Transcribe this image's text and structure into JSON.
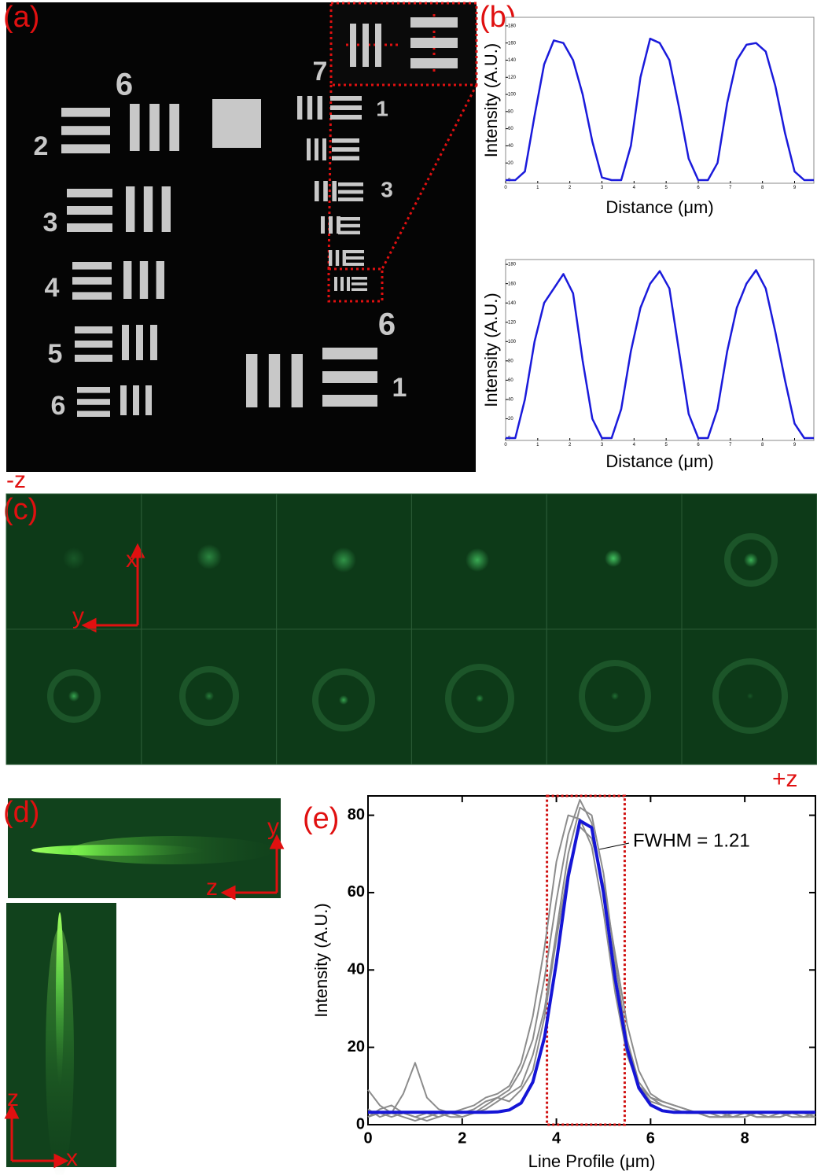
{
  "panel_labels": [
    "(a)",
    "(b)",
    "(c)",
    "(d)",
    "(e)"
  ],
  "z_range_labels": [
    "-z",
    "+z"
  ],
  "target_labels": [
    "6",
    "2",
    "3",
    "4",
    "5",
    "6",
    "7",
    "1",
    "3",
    "6",
    "1"
  ],
  "c_axes": [
    "x",
    "y"
  ],
  "d_top_axes": [
    "y",
    "z"
  ],
  "d_bottom_axes": [
    "z",
    "x"
  ],
  "chart_data": [
    {
      "type": "line",
      "x_label": "Distance (μm)",
      "y_label": "Intensity (A.U.)",
      "x": [
        0,
        0.3,
        0.6,
        0.9,
        1.2,
        1.5,
        1.8,
        2.1,
        2.4,
        2.7,
        3.0,
        3.3,
        3.6,
        3.9,
        4.2,
        4.5,
        4.8,
        5.1,
        5.4,
        5.7,
        6.0,
        6.3,
        6.6,
        6.9,
        7.2,
        7.5,
        7.8,
        8.1,
        8.4,
        8.7,
        9.0,
        9.3,
        9.6
      ],
      "series": [
        {
          "color": "#1a1adb",
          "values": [
            0,
            0,
            10,
            75,
            135,
            163,
            160,
            140,
            100,
            45,
            3,
            0,
            0,
            40,
            120,
            165,
            160,
            140,
            85,
            25,
            0,
            0,
            20,
            90,
            140,
            158,
            160,
            150,
            110,
            55,
            10,
            0,
            0
          ]
        }
      ],
      "xlim": [
        0,
        9.6
      ],
      "xticks": [
        0,
        1,
        2,
        3,
        4,
        5,
        6,
        7,
        8,
        9
      ],
      "ylim": [
        0,
        190
      ],
      "yticks": [
        0,
        20,
        40,
        60,
        80,
        100,
        120,
        140,
        160,
        180
      ]
    },
    {
      "type": "line",
      "x_label": "Distance (μm)",
      "y_label": "Intensity (A.U.)",
      "x": [
        0,
        0.3,
        0.6,
        0.9,
        1.2,
        1.5,
        1.8,
        2.1,
        2.4,
        2.7,
        3.0,
        3.3,
        3.6,
        3.9,
        4.2,
        4.5,
        4.8,
        5.1,
        5.4,
        5.7,
        6.0,
        6.3,
        6.6,
        6.9,
        7.2,
        7.5,
        7.8,
        8.1,
        8.4,
        8.7,
        9.0,
        9.3,
        9.6
      ],
      "series": [
        {
          "color": "#1a1adb",
          "values": [
            0,
            0,
            40,
            100,
            140,
            155,
            170,
            150,
            80,
            20,
            0,
            0,
            30,
            90,
            135,
            160,
            173,
            155,
            90,
            25,
            0,
            0,
            30,
            90,
            135,
            160,
            174,
            155,
            110,
            60,
            15,
            0,
            0
          ]
        }
      ],
      "xlim": [
        0,
        9.6
      ],
      "xticks": [
        0,
        1,
        2,
        3,
        4,
        5,
        6,
        7,
        8,
        9
      ],
      "ylim": [
        0,
        185
      ],
      "yticks": [
        0,
        20,
        40,
        60,
        80,
        100,
        120,
        140,
        160,
        180
      ]
    },
    {
      "type": "line",
      "x_label": "Line Profile (μm)",
      "y_label": "Intensity (A.U.)",
      "annotation": "FWHM = 1.21",
      "x": [
        0,
        0.25,
        0.5,
        0.75,
        1,
        1.25,
        1.5,
        1.75,
        2,
        2.25,
        2.5,
        2.75,
        3,
        3.25,
        3.5,
        3.75,
        4,
        4.25,
        4.5,
        4.75,
        5,
        5.25,
        5.5,
        5.75,
        6,
        6.25,
        6.5,
        6.75,
        7,
        7.25,
        7.5,
        7.75,
        8,
        8.25,
        8.5,
        8.75,
        9,
        9.25,
        9.5
      ],
      "series": [
        {
          "color": "#8c8c8c",
          "values": [
            9,
            5,
            3,
            8,
            16,
            7,
            4,
            3,
            2,
            3,
            4,
            6,
            8,
            10,
            18,
            30,
            50,
            70,
            82,
            80,
            65,
            42,
            22,
            11,
            7,
            5,
            4,
            3,
            3,
            2,
            2,
            2,
            3,
            3,
            2,
            2,
            3,
            3,
            3
          ]
        },
        {
          "color": "#8c8c8c",
          "values": [
            2,
            3,
            2,
            3,
            2,
            1,
            2,
            3,
            3,
            4,
            6,
            7,
            9,
            14,
            22,
            38,
            58,
            75,
            84,
            78,
            60,
            38,
            20,
            10,
            6,
            5,
            4,
            3,
            3,
            3,
            2,
            2,
            2,
            3,
            3,
            3,
            2,
            2,
            2
          ]
        },
        {
          "color": "#8c8c8c",
          "values": [
            4,
            2,
            3,
            2,
            1,
            2,
            3,
            2,
            2,
            3,
            5,
            7,
            6,
            9,
            14,
            28,
            48,
            66,
            77,
            74,
            62,
            44,
            26,
            14,
            8,
            6,
            5,
            4,
            3,
            2,
            2,
            3,
            3,
            2,
            2,
            3,
            3,
            2,
            3
          ]
        },
        {
          "color": "#8c8c8c",
          "values": [
            2,
            4,
            5,
            3,
            2,
            3,
            2,
            3,
            4,
            5,
            7,
            8,
            10,
            16,
            28,
            46,
            68,
            80,
            79,
            72,
            55,
            34,
            18,
            10,
            7,
            6,
            5,
            4,
            3,
            3,
            3,
            2,
            3,
            2,
            2,
            2,
            3,
            3,
            2
          ]
        },
        {
          "color": "#1515d6",
          "values": [
            3.2,
            3.2,
            3.2,
            3.2,
            3.2,
            3.2,
            3.2,
            3.2,
            3.2,
            3.2,
            3.2,
            3.3,
            3.8,
            5.6,
            11.0,
            22.7,
            42.0,
            64.1,
            78.6,
            76.8,
            59.9,
            37.7,
            19.8,
            9.5,
            5.1,
            3.6,
            3.2,
            3.2,
            3.2,
            3.2,
            3.2,
            3.2,
            3.2,
            3.2,
            3.2,
            3.2,
            3.2,
            3.2,
            3.2
          ]
        }
      ],
      "xlim": [
        0,
        9.5
      ],
      "xticks": [
        0,
        2,
        4,
        6,
        8
      ],
      "ylim": [
        0,
        85
      ],
      "yticks": [
        0,
        20,
        40,
        60,
        80
      ]
    }
  ]
}
